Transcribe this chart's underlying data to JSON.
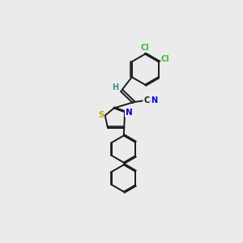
{
  "background_color": "#ebebeb",
  "bond_color": "#1a1a1a",
  "atom_colors": {
    "Cl": "#3dba3d",
    "S": "#c8a800",
    "N": "#0000e0",
    "H": "#3a9090"
  },
  "lw": 1.4,
  "figsize": [
    3.0,
    3.0
  ],
  "dpi": 100
}
